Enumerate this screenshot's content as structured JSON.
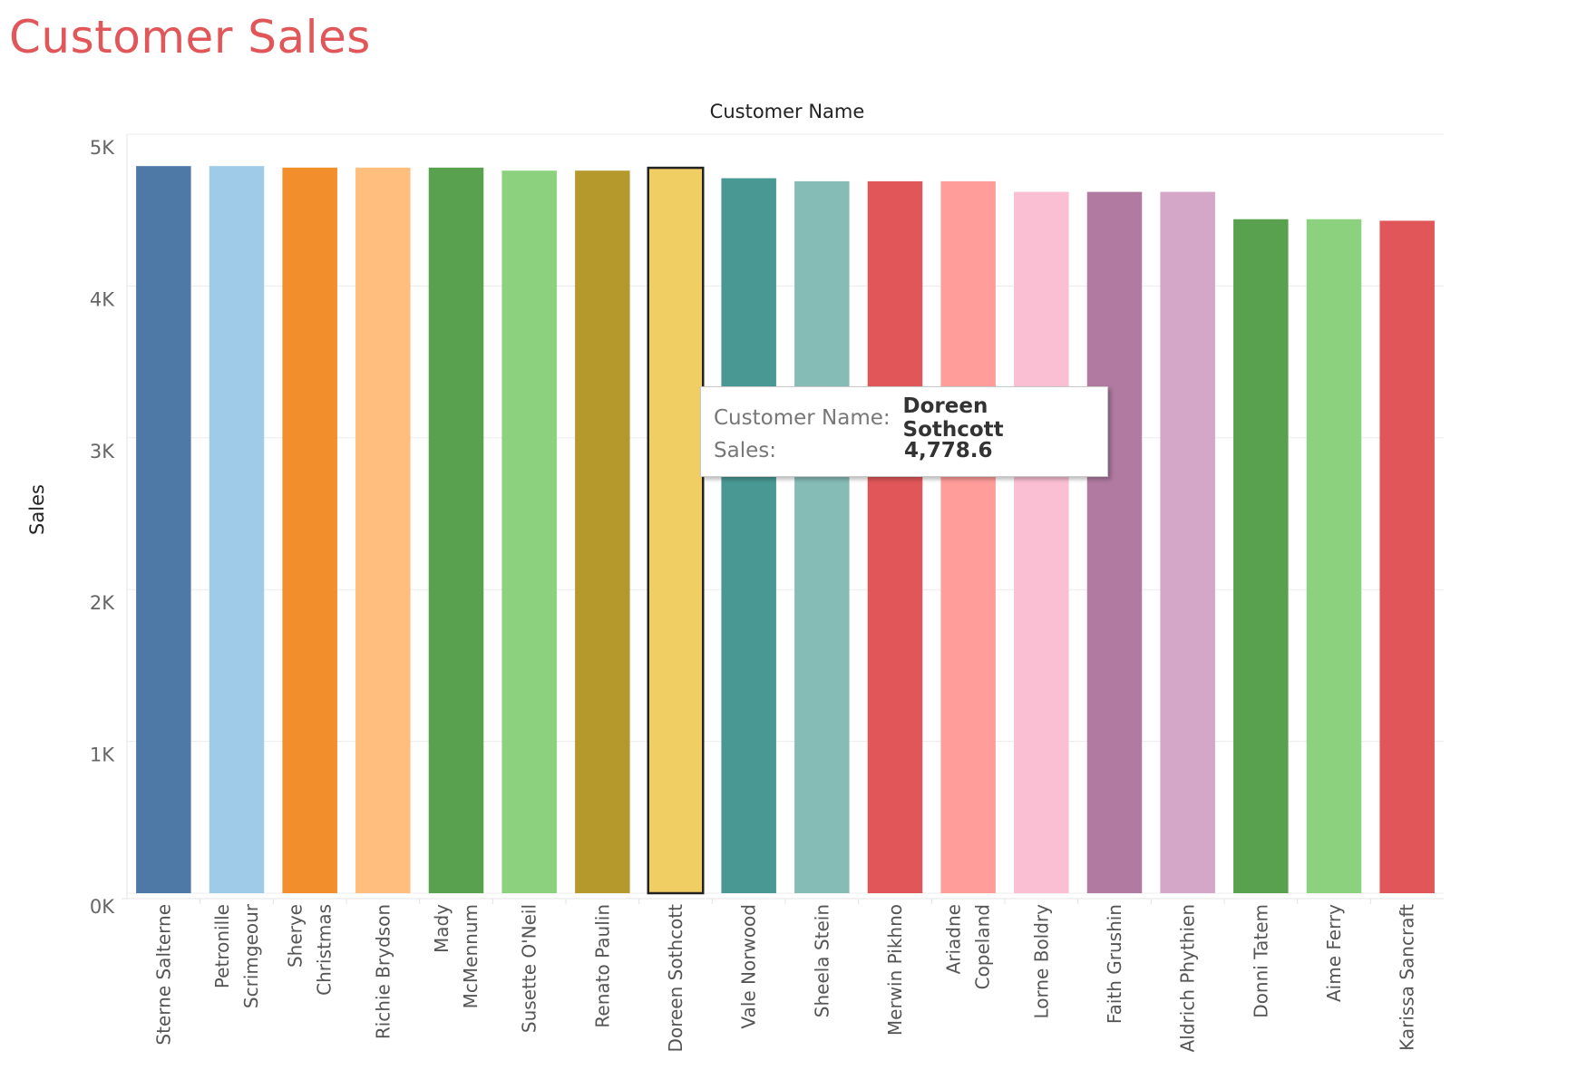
{
  "page": {
    "title": "Customer Sales"
  },
  "tooltip": {
    "name_key": "Customer Name:",
    "name_value": "Doreen Sothcott",
    "sales_key": "Sales:",
    "sales_value": "4,778.6"
  },
  "colors": {
    "title": "#e15759",
    "highlight_border": "#222222"
  },
  "chart_data": {
    "type": "bar",
    "xlabel": "Customer Name",
    "ylabel": "Sales",
    "ylim": [
      0,
      5000
    ],
    "grid": true,
    "yticks": [
      {
        "value": 0,
        "label": "0K"
      },
      {
        "value": 1000,
        "label": "1K"
      },
      {
        "value": 2000,
        "label": "2K"
      },
      {
        "value": 3000,
        "label": "3K"
      },
      {
        "value": 4000,
        "label": "4K"
      },
      {
        "value": 5000,
        "label": "5K"
      }
    ],
    "highlighted": "Doreen Sothcott",
    "bars": [
      {
        "lines": [
          "Sterne Salterne"
        ],
        "value": 4790,
        "color": "#4e79a7"
      },
      {
        "lines": [
          "Petronille",
          "Scrimgeour"
        ],
        "value": 4790,
        "color": "#a0cbe8"
      },
      {
        "lines": [
          "Sherye",
          "Christmas"
        ],
        "value": 4780,
        "color": "#f28e2b"
      },
      {
        "lines": [
          "Richie Brydson"
        ],
        "value": 4780,
        "color": "#ffbe7d"
      },
      {
        "lines": [
          "Mady",
          "McMennum"
        ],
        "value": 4780,
        "color": "#59a14f"
      },
      {
        "lines": [
          "Susette O'Neil"
        ],
        "value": 4760,
        "color": "#8cd17d"
      },
      {
        "lines": [
          "Renato Paulin"
        ],
        "value": 4760,
        "color": "#b6992d"
      },
      {
        "lines": [
          "Doreen Sothcott"
        ],
        "value": 4778.6,
        "color": "#f1ce63"
      },
      {
        "lines": [
          "Vale Norwood"
        ],
        "value": 4710,
        "color": "#499894"
      },
      {
        "lines": [
          "Sheela Stein"
        ],
        "value": 4690,
        "color": "#86bcb6"
      },
      {
        "lines": [
          "Merwin Pikhno"
        ],
        "value": 4690,
        "color": "#e15759"
      },
      {
        "lines": [
          "Ariadne",
          "Copeland"
        ],
        "value": 4690,
        "color": "#ff9d9a"
      },
      {
        "lines": [
          "Lorne Boldry"
        ],
        "value": 4620,
        "color": "#fabfd2"
      },
      {
        "lines": [
          "Faith Grushin"
        ],
        "value": 4620,
        "color": "#b07aa1"
      },
      {
        "lines": [
          "Aldrich Phythien"
        ],
        "value": 4620,
        "color": "#d4a6c8"
      },
      {
        "lines": [
          "Donni Tatem"
        ],
        "value": 4440,
        "color": "#59a14f"
      },
      {
        "lines": [
          "Aime Ferry"
        ],
        "value": 4440,
        "color": "#8cd17d"
      },
      {
        "lines": [
          "Karissa Sancraft"
        ],
        "value": 4430,
        "color": "#e15759"
      }
    ]
  }
}
